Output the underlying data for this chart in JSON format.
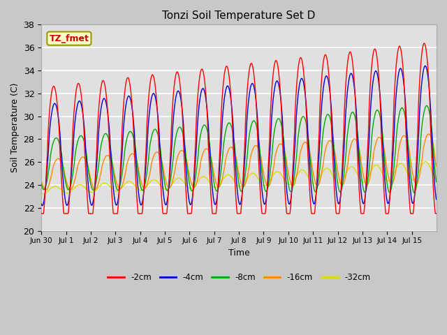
{
  "title": "Tonzi Soil Temperature Set D",
  "xlabel": "Time",
  "ylabel": "Soil Temperature (C)",
  "ylim": [
    20,
    38
  ],
  "yticks": [
    20,
    22,
    24,
    26,
    28,
    30,
    32,
    34,
    36,
    38
  ],
  "fig_facecolor": "#c8c8c8",
  "plot_bg_color": "#e0e0e0",
  "grid_color": "#ffffff",
  "series_colors": {
    "-2cm": "#ff0000",
    "-4cm": "#0000cc",
    "-8cm": "#00aa00",
    "-16cm": "#ff8800",
    "-32cm": "#dddd00"
  },
  "legend_labels": [
    "-2cm",
    "-4cm",
    "-8cm",
    "-16cm",
    "-32cm"
  ],
  "annotation_text": "TZ_fmet",
  "annotation_bg": "#ffffcc",
  "annotation_border": "#999900",
  "annotation_text_color": "#cc0000",
  "n_days": 16,
  "tick_labels": [
    "Jun 30",
    "Jul 1",
    "Jul 2",
    "Jul 3",
    "Jul 4",
    "Jul 5",
    "Jul 6",
    "Jul 7",
    "Jul 8",
    "Jul 9",
    "Jul 10",
    "Jul 11",
    "Jul 12",
    "Jul 13",
    "Jul 14",
    "Jul 15"
  ]
}
